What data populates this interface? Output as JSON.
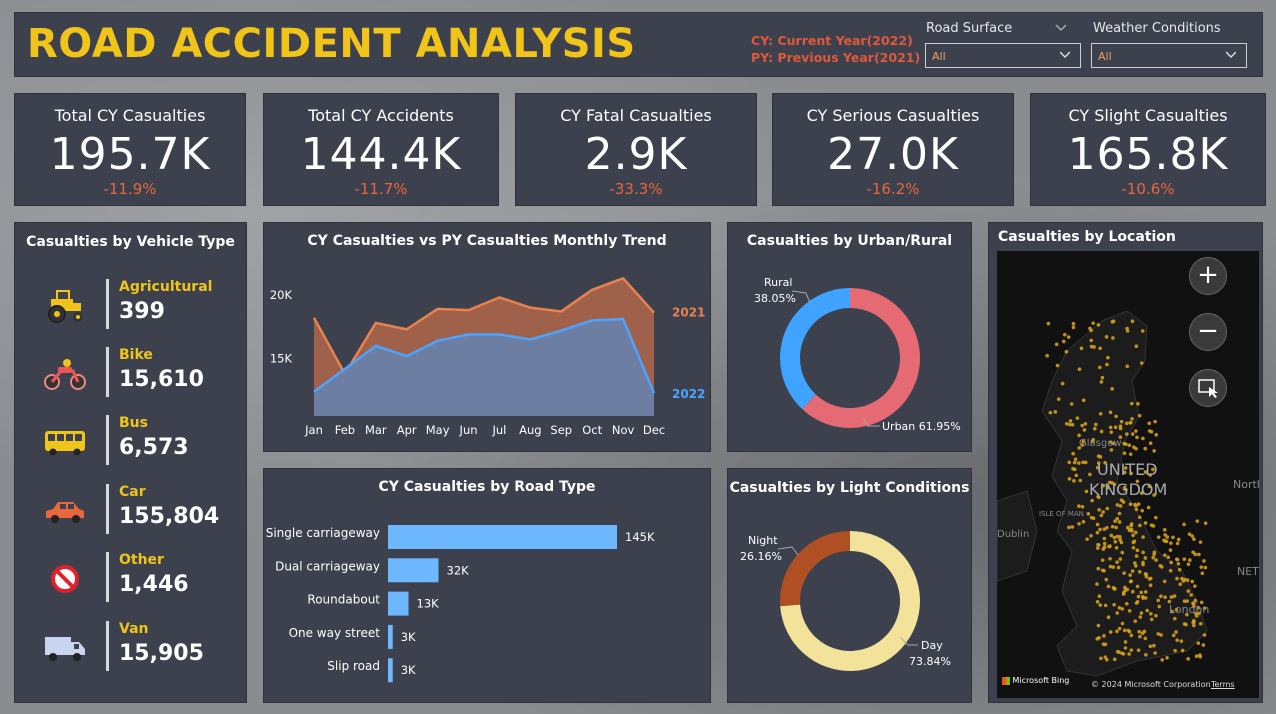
{
  "header": {
    "title": "ROAD ACCIDENT ANALYSIS",
    "cy_note": "CY: Current Year(2022)",
    "py_note": "PY: Previous Year(2021)",
    "filters": [
      {
        "label": "Road Surface",
        "value": "All"
      },
      {
        "label": "Weather Conditions",
        "value": "All"
      }
    ]
  },
  "kpis": [
    {
      "title": "Total CY Casualties",
      "value": "195.7K",
      "delta": "-11.9%"
    },
    {
      "title": "Total CY Accidents",
      "value": "144.4K",
      "delta": "-11.7%"
    },
    {
      "title": "CY Fatal Casualties",
      "value": "2.9K",
      "delta": "-33.3%"
    },
    {
      "title": "CY Serious Casualties",
      "value": "27.0K",
      "delta": "-16.2%"
    },
    {
      "title": "CY Slight Casualties",
      "value": "165.8K",
      "delta": "-10.6%"
    }
  ],
  "vehicle": {
    "title": "Casualties by Vehicle Type",
    "items": [
      {
        "label": "Agricultural",
        "value": "399",
        "icon": "tractor-icon"
      },
      {
        "label": "Bike",
        "value": "15,610",
        "icon": "motorbike-icon"
      },
      {
        "label": "Bus",
        "value": "6,573",
        "icon": "bus-icon"
      },
      {
        "label": "Car",
        "value": "155,804",
        "icon": "car-icon"
      },
      {
        "label": "Other",
        "value": "1,446",
        "icon": "no-entry-icon"
      },
      {
        "label": "Van",
        "value": "15,905",
        "icon": "van-icon"
      }
    ]
  },
  "colors": {
    "accent": "#f0c419",
    "negative": "#e8673d",
    "py_series": "#e8824f",
    "cy_series": "#4da3ff",
    "bar": "#6db8ff",
    "urban": "#e56a73",
    "rural": "#3fa3ff",
    "day": "#f3e29a",
    "night": "#b04f24"
  },
  "chart_data": [
    {
      "type": "area",
      "title": "CY Casualties vs PY Casualties Monthly Trend",
      "categories": [
        "Jan",
        "Feb",
        "Mar",
        "Apr",
        "May",
        "Jun",
        "Jul",
        "Aug",
        "Sep",
        "Oct",
        "Nov",
        "Dec"
      ],
      "yticks": [
        "15K",
        "20K"
      ],
      "ylim": [
        10500,
        22500
      ],
      "series": [
        {
          "name": "2021",
          "values": [
            18200,
            13800,
            17800,
            17300,
            18900,
            18800,
            19800,
            19000,
            18700,
            20400,
            21300,
            18600
          ]
        },
        {
          "name": "2022",
          "values": [
            12400,
            14200,
            16000,
            15200,
            16400,
            16900,
            16900,
            16500,
            17200,
            18000,
            18100,
            12300
          ]
        }
      ]
    },
    {
      "type": "bar",
      "title": "CY Casualties by Road Type",
      "categories": [
        "Single carriageway",
        "Dual carriageway",
        "Roundabout",
        "One way street",
        "Slip road"
      ],
      "values": [
        145,
        32,
        13,
        3,
        3
      ],
      "labels": [
        "145K",
        "32K",
        "13K",
        "3K",
        "3K"
      ]
    },
    {
      "type": "pie",
      "title": "Casualties by Urban/Rural",
      "slices": [
        {
          "name": "Urban",
          "value": 61.95,
          "label": "Urban 61.95%"
        },
        {
          "name": "Rural",
          "value": 38.05,
          "label": "38.05%"
        }
      ]
    },
    {
      "type": "pie",
      "title": "Casualties by Light Conditions",
      "slices": [
        {
          "name": "Day",
          "value": 73.84,
          "label": "73.84%"
        },
        {
          "name": "Night",
          "value": 26.16,
          "label": "26.16%"
        }
      ]
    }
  ],
  "location": {
    "title": "Casualties by Location",
    "map_labels": [
      "UNITED",
      "KINGDOM",
      "Glasgow",
      "Dublin",
      "ISLE OF MAN",
      "London",
      "North",
      "NET"
    ],
    "attribution": "© 2024 Microsoft Corporation",
    "terms": "Terms",
    "brand": "Microsoft Bing",
    "zoom_in": "+",
    "zoom_out": "−"
  }
}
